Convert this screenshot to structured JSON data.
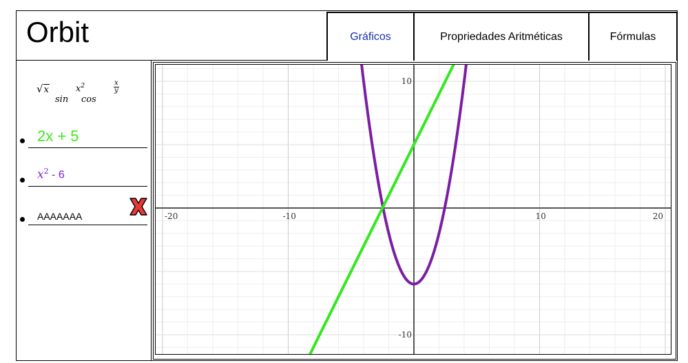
{
  "app": {
    "title": "Orbit"
  },
  "tabs": [
    {
      "label": "Gráficos",
      "active": true
    },
    {
      "label": "Propriedades Aritméticas",
      "active": false
    },
    {
      "label": "Fórmulas",
      "active": false
    }
  ],
  "toolbar": {
    "sqrt": {
      "radical": "√",
      "var": "x"
    },
    "square": {
      "base": "x",
      "exp": "2"
    },
    "fraction": {
      "num": "x",
      "den": "y"
    },
    "sin": "sin",
    "cos": "cos"
  },
  "expressions": [
    {
      "text": "2x + 5",
      "color": "#3ee81b"
    },
    {
      "base": "x",
      "exp": "2",
      "rest": " - 6",
      "color": "#7b1fd1"
    },
    {
      "text": "AAAAAAA",
      "color": "#000000"
    }
  ],
  "delete_icon": {
    "name": "red-x-icon",
    "color": "#e53935"
  },
  "chart_data": {
    "type": "line",
    "title": "",
    "xlabel": "",
    "ylabel": "",
    "xlim": [
      -20,
      20
    ],
    "ylim": [
      -10,
      10
    ],
    "grid": true,
    "x_ticks": [
      -20,
      -10,
      10,
      20
    ],
    "y_ticks": [
      10,
      -10
    ],
    "tick_labels": {
      "x_neg20": "-20",
      "x_neg10": "-10",
      "x_10": "10",
      "x_20": "20",
      "y_10": "10",
      "y_neg10": "-10"
    },
    "series": [
      {
        "color": "#7b1fa2",
        "function": "x^2 - 6"
      },
      {
        "color": "#33e81f",
        "function": "2x + 5"
      }
    ]
  }
}
